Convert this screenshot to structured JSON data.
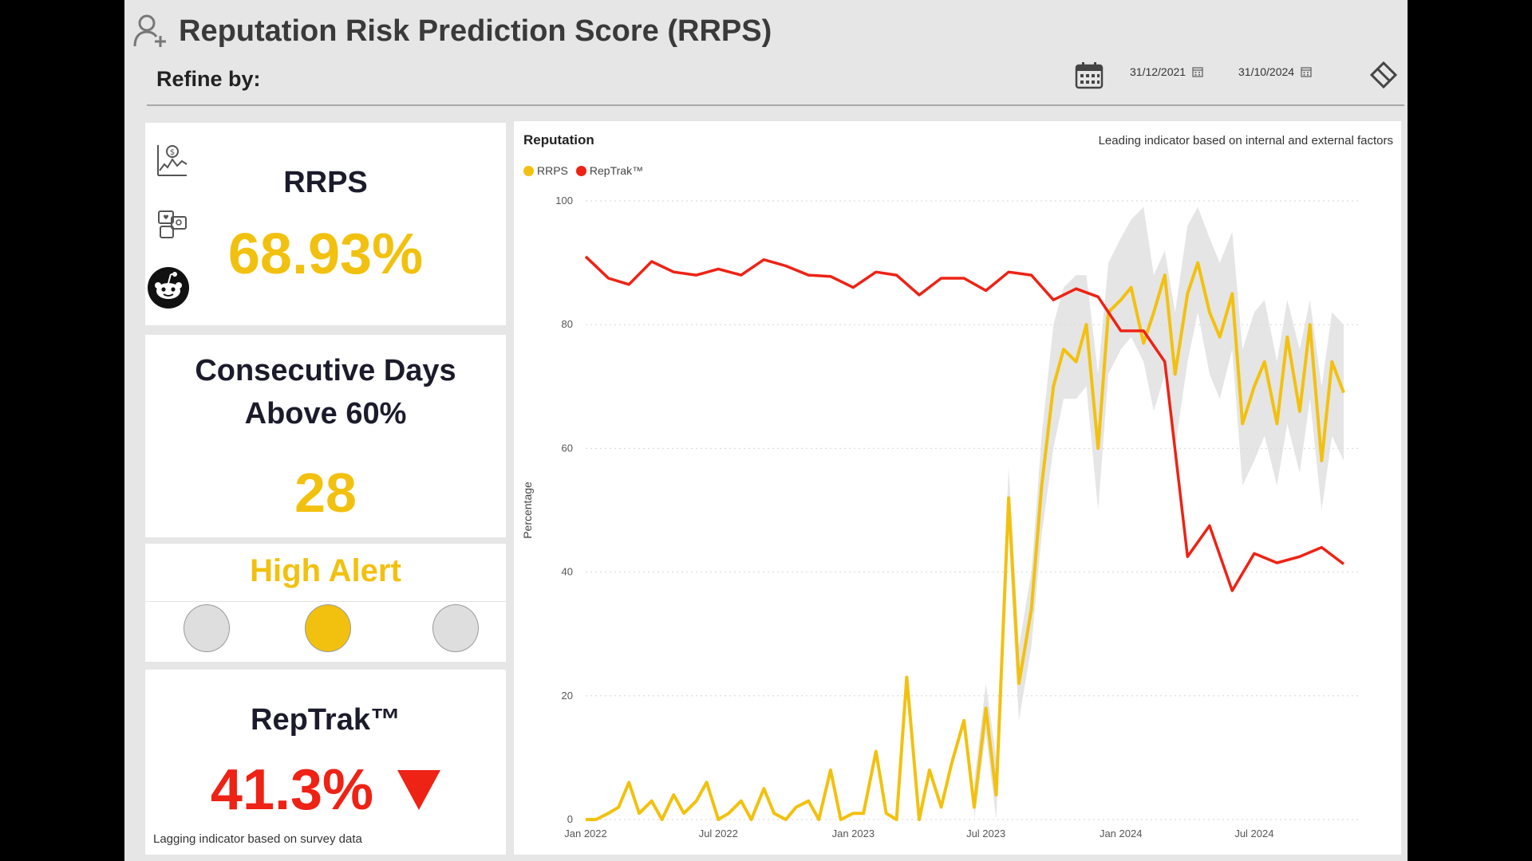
{
  "header": {
    "title": "Reputation Risk Prediction Score (RRPS)",
    "refine_label": "Refine by:",
    "start_date": "31/12/2021",
    "end_date": "31/10/2024"
  },
  "rrps_card": {
    "label": "RRPS",
    "value": "68.93%"
  },
  "consecutive_card": {
    "label_line1": "Consecutive Days",
    "label_line2": "Above 60%",
    "value": "28"
  },
  "alert_card": {
    "label": "High Alert",
    "active_light": 2
  },
  "reptrak_card": {
    "label": "RepTrak™",
    "value": "41.3%",
    "trend": "down",
    "footnote": "Lagging indicator based on survey data"
  },
  "colors": {
    "accent": "#f2c10f",
    "red": "#ee2215",
    "band": "#dcdcdc",
    "light_off": "#dedede"
  },
  "chart": {
    "title": "Reputation",
    "subtitle": "Leading indicator based on internal and external factors",
    "legend": [
      "RRPS",
      "RepTrak™"
    ],
    "ylabel": "Percentage"
  },
  "chart_data": {
    "type": "line",
    "x_range": [
      "2022-01-01",
      "2024-10-31"
    ],
    "x_ticks": [
      "Jan 2022",
      "Jul 2022",
      "Jan 2023",
      "Jul 2023",
      "Jan 2024",
      "Jul 2024"
    ],
    "ylim": [
      0,
      100
    ],
    "y_ticks": [
      0,
      20,
      40,
      60,
      80,
      100
    ],
    "grid": true,
    "legend_position": "top-left",
    "series": [
      {
        "name": "RRPS",
        "color": "#f2c10f",
        "x": [
          "2022-01-01",
          "2022-01-15",
          "2022-02-01",
          "2022-02-15",
          "2022-03-01",
          "2022-03-15",
          "2022-04-01",
          "2022-04-15",
          "2022-05-01",
          "2022-05-15",
          "2022-06-01",
          "2022-06-15",
          "2022-07-01",
          "2022-07-15",
          "2022-08-01",
          "2022-08-15",
          "2022-09-01",
          "2022-09-15",
          "2022-10-01",
          "2022-10-15",
          "2022-11-01",
          "2022-11-15",
          "2022-12-01",
          "2022-12-15",
          "2023-01-01",
          "2023-01-15",
          "2023-02-01",
          "2023-02-15",
          "2023-03-01",
          "2023-03-15",
          "2023-04-01",
          "2023-04-15",
          "2023-05-01",
          "2023-05-15",
          "2023-06-01",
          "2023-06-15",
          "2023-07-01",
          "2023-07-15",
          "2023-08-01",
          "2023-08-15",
          "2023-09-01",
          "2023-09-15",
          "2023-10-01",
          "2023-10-15",
          "2023-11-01",
          "2023-11-15",
          "2023-12-01",
          "2023-12-15",
          "2024-01-01",
          "2024-01-15",
          "2024-02-01",
          "2024-02-15",
          "2024-03-01",
          "2024-03-15",
          "2024-04-01",
          "2024-04-15",
          "2024-05-01",
          "2024-05-15",
          "2024-06-01",
          "2024-06-15",
          "2024-07-01",
          "2024-07-15",
          "2024-08-01",
          "2024-08-15",
          "2024-09-01",
          "2024-09-15",
          "2024-10-01",
          "2024-10-15",
          "2024-10-31"
        ],
        "y": [
          0,
          0,
          1,
          2,
          6,
          1,
          3,
          0,
          4,
          1,
          3,
          6,
          0,
          1,
          3,
          0,
          5,
          1,
          0,
          2,
          3,
          0,
          8,
          0,
          1,
          1,
          11,
          1,
          0,
          23,
          0,
          8,
          2,
          9,
          16,
          2,
          18,
          4,
          52,
          22,
          34,
          54,
          70,
          76,
          74,
          80,
          60,
          82,
          84,
          86,
          77,
          82,
          88,
          72,
          85,
          90,
          82,
          78,
          85,
          64,
          70,
          74,
          64,
          78,
          66,
          80,
          58,
          74,
          69
        ]
      },
      {
        "name": "RepTrak™",
        "color": "#ee2215",
        "x": [
          "2022-01-01",
          "2022-02-01",
          "2022-03-01",
          "2022-04-01",
          "2022-05-01",
          "2022-06-01",
          "2022-07-01",
          "2022-08-01",
          "2022-09-01",
          "2022-10-01",
          "2022-11-01",
          "2022-12-01",
          "2023-01-01",
          "2023-02-01",
          "2023-03-01",
          "2023-04-01",
          "2023-05-01",
          "2023-06-01",
          "2023-07-01",
          "2023-08-01",
          "2023-09-01",
          "2023-10-01",
          "2023-11-01",
          "2023-12-01",
          "2024-01-01",
          "2024-02-01",
          "2024-03-01",
          "2024-04-01",
          "2024-05-01",
          "2024-06-01",
          "2024-07-01",
          "2024-08-01",
          "2024-09-01",
          "2024-10-01",
          "2024-10-31"
        ],
        "y": [
          91,
          87.5,
          86.5,
          90.2,
          88.5,
          88,
          89,
          88,
          90.5,
          89.5,
          88,
          87.8,
          86,
          88.5,
          88,
          84.8,
          87.5,
          87.5,
          85.5,
          88.5,
          88,
          84,
          85.8,
          84.5,
          79,
          79,
          74,
          42.5,
          47.5,
          37,
          43,
          41.5,
          42.5,
          44,
          41.3
        ]
      }
    ],
    "band": {
      "name": "RRPS range",
      "x": [
        "2023-06-15",
        "2023-07-01",
        "2023-07-15",
        "2023-08-01",
        "2023-08-15",
        "2023-09-01",
        "2023-09-15",
        "2023-10-01",
        "2023-10-15",
        "2023-11-01",
        "2023-11-15",
        "2023-12-01",
        "2023-12-15",
        "2024-01-01",
        "2024-01-15",
        "2024-02-01",
        "2024-02-15",
        "2024-03-01",
        "2024-03-15",
        "2024-04-01",
        "2024-04-15",
        "2024-05-01",
        "2024-05-15",
        "2024-06-01",
        "2024-06-15",
        "2024-07-01",
        "2024-07-15",
        "2024-08-01",
        "2024-08-15",
        "2024-09-01",
        "2024-09-15",
        "2024-10-01",
        "2024-10-15",
        "2024-10-31"
      ],
      "upper": [
        6,
        22,
        10,
        57,
        28,
        40,
        62,
        80,
        86,
        88,
        88,
        72,
        90,
        94,
        97,
        99,
        88,
        92,
        82,
        96,
        99,
        94,
        90,
        95,
        76,
        82,
        84,
        74,
        84,
        76,
        84,
        70,
        82,
        80
      ],
      "lower": [
        0,
        14,
        0,
        46,
        16,
        28,
        46,
        60,
        68,
        68,
        70,
        50,
        72,
        76,
        78,
        74,
        66,
        72,
        60,
        74,
        82,
        72,
        68,
        76,
        54,
        58,
        62,
        54,
        64,
        56,
        68,
        50,
        62,
        58
      ]
    }
  }
}
